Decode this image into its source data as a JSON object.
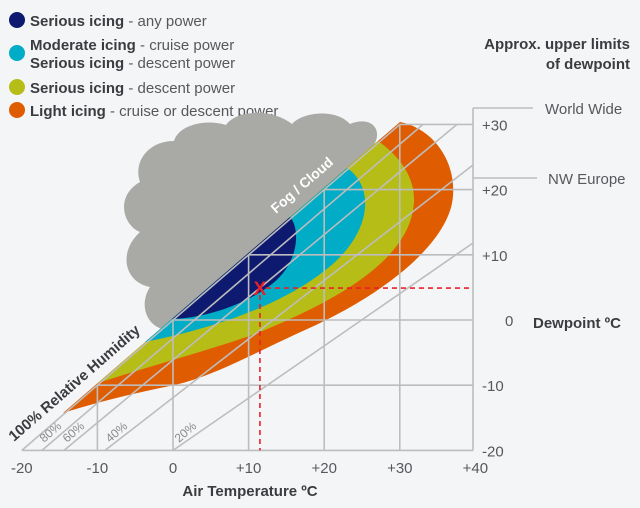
{
  "legend": [
    {
      "bold": "Serious icing",
      "rest": " - any power",
      "color": "#0d1a70"
    },
    {
      "bold": "Moderate icing",
      "rest": " - cruise power",
      "bold2": "Serious icing",
      "rest2": " - descent power",
      "color": "#00acc6"
    },
    {
      "bold": "Serious icing",
      "rest": " - descent power",
      "color": "#b6bd17"
    },
    {
      "bold": "Light icing",
      "rest": " - cruise or descent power",
      "color": "#e05c00"
    }
  ],
  "upper_limits_title": [
    "Approx. upper limits",
    "of dewpoint"
  ],
  "limits": [
    {
      "label": "World Wide",
      "value": 33
    },
    {
      "label": "NW Europe",
      "value": 22
    }
  ],
  "x_axis": {
    "label": "Air Temperature ºC",
    "ticks": [
      "-20",
      "-10",
      "0",
      "+10",
      "+20",
      "+30",
      "+40"
    ],
    "values": [
      -20,
      -10,
      0,
      10,
      20,
      30,
      40
    ]
  },
  "y_axis": {
    "label": "Dewpoint ºC",
    "ticks": [
      "+30",
      "+20",
      "+10",
      "0",
      "-10",
      "-20"
    ],
    "values": [
      30,
      20,
      10,
      0,
      -10,
      -20
    ]
  },
  "humidity_lines": [
    {
      "label": "80%"
    },
    {
      "label": "60%"
    },
    {
      "label": "40%"
    },
    {
      "label": "20%"
    }
  ],
  "saturation_label": "100% Relative Humidity",
  "cloud_label": "Fog / Cloud",
  "marker": {
    "symbol": "X",
    "temperature": 11.5,
    "dewpoint": 4.9,
    "color": "#e8202a"
  },
  "colors": {
    "cloud": "#a9a9a6",
    "grid": "#bdbdbd"
  }
}
